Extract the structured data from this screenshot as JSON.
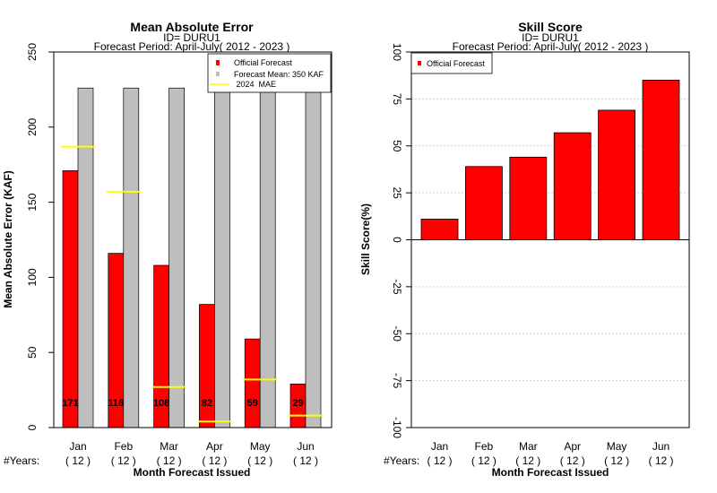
{
  "chart_data": [
    {
      "type": "bar",
      "title": "Mean Absolute Error",
      "subtitle_id": "ID= DURU1",
      "subtitle_period": "Forecast Period: April-July( 2012 - 2023 )",
      "ylabel": "Mean Absolute Error (KAF)",
      "xlabel": "Month Forecast Issued",
      "years_label": "#Years:",
      "categories": [
        "Jan",
        "Feb",
        "Mar",
        "Apr",
        "May",
        "Jun"
      ],
      "years": [
        "( 12 )",
        "( 12 )",
        "( 12 )",
        "( 12 )",
        "( 12 )",
        "( 12 )"
      ],
      "ylim": [
        0,
        250
      ],
      "yticks": [
        0,
        50,
        100,
        150,
        200,
        250
      ],
      "series": [
        {
          "name": "Official Forecast",
          "color": "#ff0000",
          "values": [
            171,
            116,
            108,
            82,
            59,
            29
          ]
        },
        {
          "name": "Forecast Mean: 350 KAF",
          "color": "#bebebe",
          "values": [
            226,
            226,
            226,
            226,
            226,
            226
          ]
        },
        {
          "name": " 2024  MAE",
          "color": "#ffff00",
          "values": [
            187,
            157,
            27,
            4,
            32,
            8
          ]
        }
      ],
      "data_labels": [
        "171",
        "116",
        "108",
        "82",
        "59",
        "29"
      ],
      "legend_position": "top-right"
    },
    {
      "type": "bar",
      "title": "Skill Score",
      "subtitle_id": "ID= DURU1",
      "subtitle_period": "Forecast Period: April-July( 2012 - 2023 )",
      "ylabel": "Skill Score(%)",
      "xlabel": "Month Forecast Issued",
      "years_label": "#Years:",
      "categories": [
        "Jan",
        "Feb",
        "Mar",
        "Apr",
        "May",
        "Jun"
      ],
      "years": [
        "( 12 )",
        "( 12 )",
        "( 12 )",
        "( 12 )",
        "( 12 )",
        "( 12 )"
      ],
      "ylim": [
        -100,
        100
      ],
      "yticks": [
        -100,
        -75,
        -50,
        -25,
        0,
        25,
        50,
        75,
        100
      ],
      "series": [
        {
          "name": "Official Forecast",
          "color": "#ff0000",
          "values": [
            11,
            39,
            44,
            57,
            69,
            85
          ]
        }
      ],
      "grid": true,
      "legend_position": "top-left"
    }
  ]
}
